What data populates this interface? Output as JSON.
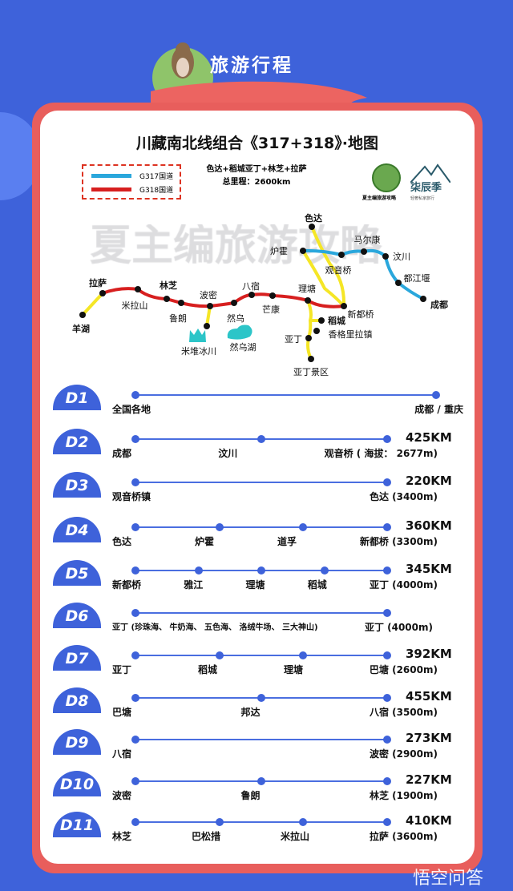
{
  "header": {
    "title": "旅游行程"
  },
  "map": {
    "title": "川藏南北线组合《317+318》·地图",
    "legend": [
      {
        "label": "G317国道",
        "color": "#2aa7dc"
      },
      {
        "label": "G318国道",
        "color": "#d71f1f"
      }
    ],
    "route_line": "色达+稻城亚丁+林芝+拉萨",
    "total_distance": "总里程：2600km",
    "logo1_text": "夏主编旅游攻略",
    "logo2_text": "柒辰季",
    "logo2_sub": "轻奢私家旅行",
    "watermark": "夏主编旅游攻略",
    "places": [
      "色达",
      "炉霍",
      "观音桥",
      "马尔康",
      "汶川",
      "都江堰",
      "成都",
      "拉萨",
      "米拉山",
      "林芝",
      "鲁朗",
      "波密",
      "然乌",
      "八宿",
      "芒康",
      "理塘",
      "新都桥",
      "羊湖",
      "米堆冰川",
      "然乌湖",
      "稻城",
      "香格里拉镇",
      "亚丁",
      "亚丁景区"
    ]
  },
  "days": [
    {
      "badge": "D1",
      "km": "",
      "stops": [
        "全国各地",
        "成都 / 重庆"
      ]
    },
    {
      "badge": "D2",
      "km": "425KM",
      "stops": [
        "成都",
        "汶川",
        "观音桥 ( 海拔： 2677m)"
      ]
    },
    {
      "badge": "D3",
      "km": "220KM",
      "stops": [
        "观音桥镇",
        "色达 (3400m)"
      ]
    },
    {
      "badge": "D4",
      "km": "360KM",
      "stops": [
        "色达",
        "炉霍",
        "道孚",
        "新都桥 (3300m)"
      ]
    },
    {
      "badge": "D5",
      "km": "345KM",
      "stops": [
        "新都桥",
        "雅江",
        "理塘",
        "稻城",
        "亚丁 (4000m)"
      ]
    },
    {
      "badge": "D6",
      "km": "",
      "stops": [
        "亚丁 (珍珠海、 牛奶海、 五色海、 洛绒牛场、 三大神山)",
        "亚丁 (4000m)"
      ]
    },
    {
      "badge": "D7",
      "km": "392KM",
      "stops": [
        "亚丁",
        "稻城",
        "理塘",
        "巴塘 (2600m)"
      ]
    },
    {
      "badge": "D8",
      "km": "455KM",
      "stops": [
        "巴塘",
        "邦达",
        "八宿 (3500m)"
      ]
    },
    {
      "badge": "D9",
      "km": "273KM",
      "stops": [
        "八宿",
        "波密 (2900m)"
      ]
    },
    {
      "badge": "D10",
      "km": "227KM",
      "stops": [
        "波密",
        "鲁朗",
        "林芝 (1900m)"
      ]
    },
    {
      "badge": "D11",
      "km": "410KM",
      "stops": [
        "林芝",
        "巴松措",
        "米拉山",
        "拉萨 (3600m)"
      ]
    }
  ],
  "footer": {
    "brand": "悟空问答"
  }
}
